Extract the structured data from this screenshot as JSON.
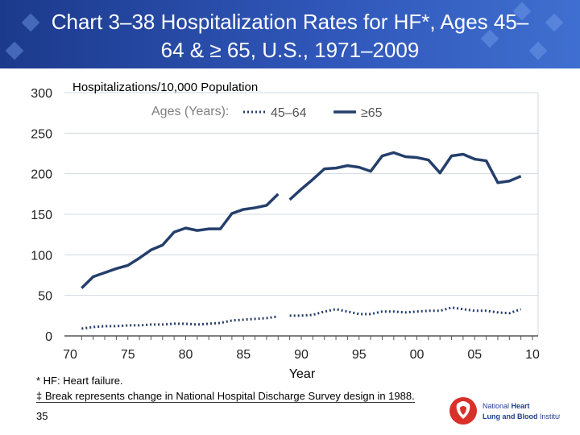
{
  "title": "Chart 3–38 Hospitalization Rates for HF*, Ages 45–64 & ≥ 65, U.S., 1971–2009",
  "footnotes": [
    "* HF: Heart failure.",
    "‡ Break represents change in National Hospital Discharge Survey design in 1988."
  ],
  "page_number": "35",
  "logo_text": "National Heart Lung and Blood Institute",
  "colors": {
    "title_bar": "#2a4fae",
    "line": "#243f6b",
    "grid": "#d0d8e0",
    "legend_label": "#7f7f7f"
  },
  "chart_data": {
    "type": "line",
    "title": "",
    "xlabel": "Year",
    "ylabel": "Hospitalizations/10,000 Population",
    "xlim": [
      1970,
      2010
    ],
    "ylim": [
      0,
      300
    ],
    "yticks": [
      "0",
      "50",
      "100",
      "150",
      "200",
      "250",
      "300"
    ],
    "xticks": [
      "70",
      "75",
      "80",
      "85",
      "90",
      "95",
      "00",
      "05",
      "10"
    ],
    "grid": "horizontal",
    "legend": {
      "title": "Ages (Years):",
      "placement": "top"
    },
    "break_after": 1988,
    "series": [
      {
        "name": "45–64",
        "style": "dotted",
        "x": [
          1971,
          1972,
          1973,
          1974,
          1975,
          1976,
          1977,
          1978,
          1979,
          1980,
          1981,
          1982,
          1983,
          1984,
          1985,
          1986,
          1987,
          1988,
          1989,
          1990,
          1991,
          1992,
          1993,
          1994,
          1995,
          1996,
          1997,
          1998,
          1999,
          2000,
          2001,
          2002,
          2003,
          2004,
          2005,
          2006,
          2007,
          2008,
          2009
        ],
        "values": [
          9,
          11,
          12,
          12,
          13,
          13,
          14,
          14,
          15,
          15,
          14,
          15,
          16,
          19,
          20,
          21,
          22,
          24,
          25,
          25,
          26,
          30,
          33,
          30,
          27,
          27,
          30,
          30,
          29,
          30,
          31,
          31,
          35,
          33,
          31,
          31,
          29,
          28,
          33
        ]
      },
      {
        "name": "≥65",
        "style": "solid",
        "x": [
          1971,
          1972,
          1973,
          1974,
          1975,
          1976,
          1977,
          1978,
          1979,
          1980,
          1981,
          1982,
          1983,
          1984,
          1985,
          1986,
          1987,
          1988,
          1989,
          1990,
          1991,
          1992,
          1993,
          1994,
          1995,
          1996,
          1997,
          1998,
          1999,
          2000,
          2001,
          2002,
          2003,
          2004,
          2005,
          2006,
          2007,
          2008,
          2009
        ],
        "values": [
          59,
          73,
          78,
          83,
          87,
          96,
          106,
          112,
          128,
          133,
          130,
          132,
          132,
          151,
          156,
          158,
          161,
          175,
          168,
          181,
          193,
          206,
          207,
          210,
          208,
          203,
          222,
          226,
          221,
          220,
          217,
          201,
          222,
          224,
          218,
          216,
          189,
          191,
          197
        ]
      }
    ]
  }
}
